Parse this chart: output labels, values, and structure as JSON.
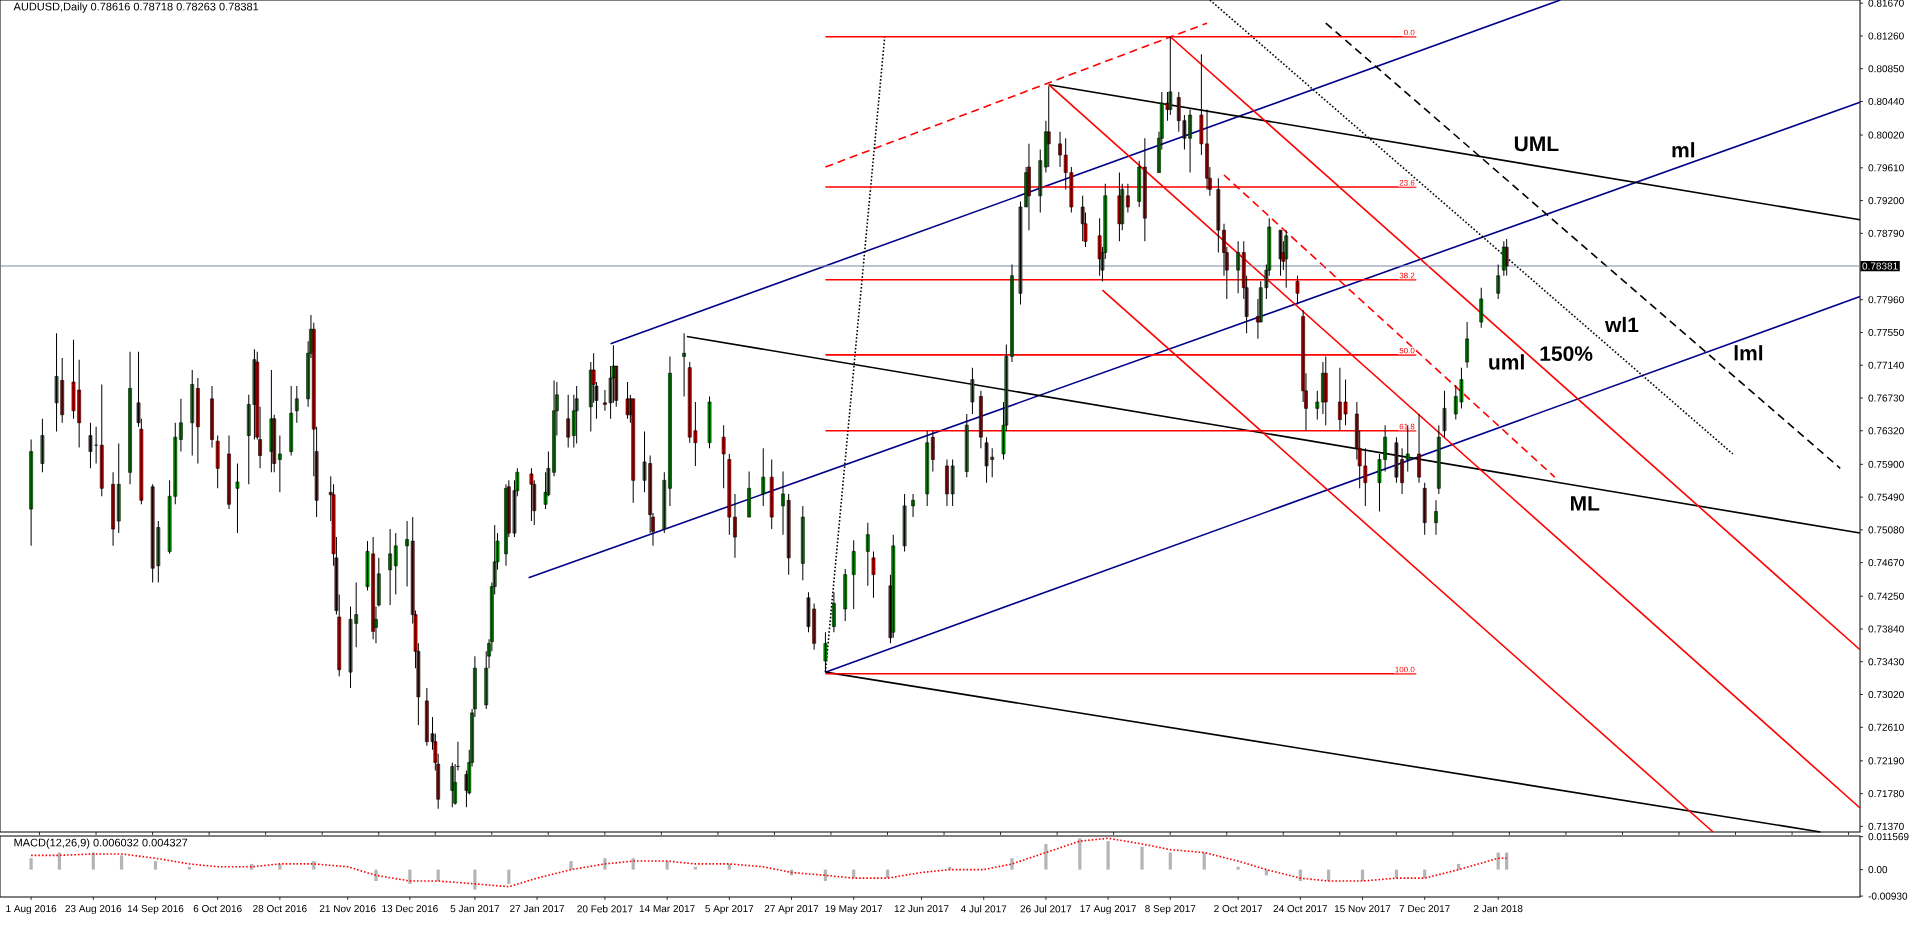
{
  "chart_data": [
    {
      "type": "candlestick",
      "title": "AUDUSD,Daily  0.78616 0.78718 0.78263 0.78381",
      "x": [
        "2016-08-01",
        "2016-08-05",
        "2016-08-10",
        "2016-08-12",
        "2016-08-16",
        "2016-08-18",
        "2016-08-22",
        "2016-08-24",
        "2016-08-26",
        "2016-08-30",
        "2016-09-01",
        "2016-09-05",
        "2016-09-08",
        "2016-09-09",
        "2016-09-13",
        "2016-09-15",
        "2016-09-19",
        "2016-09-21",
        "2016-09-23",
        "2016-09-27",
        "2016-09-29",
        "2016-10-04",
        "2016-10-06",
        "2016-10-10",
        "2016-10-13",
        "2016-10-17",
        "2016-10-19",
        "2016-10-20",
        "2016-10-21",
        "2016-10-25",
        "2016-10-26",
        "2016-10-28",
        "2016-11-01",
        "2016-11-03",
        "2016-11-07",
        "2016-11-08",
        "2016-11-09",
        "2016-11-10",
        "2016-11-15",
        "2016-11-16",
        "2016-11-17",
        "2016-11-18",
        "2016-11-22",
        "2016-11-24",
        "2016-11-28",
        "2016-11-30",
        "2016-12-01",
        "2016-12-02",
        "2016-12-06",
        "2016-12-08",
        "2016-12-12",
        "2016-12-14",
        "2016-12-15",
        "2016-12-16",
        "2016-12-19",
        "2016-12-21",
        "2016-12-22",
        "2016-12-23",
        "2016-12-28",
        "2016-12-29",
        "2016-12-30",
        "2017-01-02",
        "2017-01-03",
        "2017-01-04",
        "2017-01-05",
        "2017-01-09",
        "2017-01-10",
        "2017-01-11",
        "2017-01-12",
        "2017-01-13",
        "2017-01-16",
        "2017-01-17",
        "2017-01-19",
        "2017-01-20",
        "2017-01-25",
        "2017-01-26",
        "2017-01-30",
        "2017-01-31",
        "2017-02-02",
        "2017-02-03",
        "2017-02-07",
        "2017-02-09",
        "2017-02-10",
        "2017-02-15",
        "2017-02-16",
        "2017-02-17",
        "2017-02-20",
        "2017-02-22",
        "2017-02-23",
        "2017-02-24",
        "2017-02-28",
        "2017-03-01",
        "2017-03-02",
        "2017-03-06",
        "2017-03-08",
        "2017-03-09",
        "2017-03-13",
        "2017-03-15",
        "2017-03-20",
        "2017-03-22",
        "2017-03-24",
        "2017-03-29",
        "2017-04-03",
        "2017-04-05",
        "2017-04-07",
        "2017-04-12",
        "2017-04-17",
        "2017-04-20",
        "2017-04-24",
        "2017-04-26",
        "2017-05-01",
        "2017-05-03",
        "2017-05-05",
        "2017-05-09",
        "2017-05-12",
        "2017-05-16",
        "2017-05-19",
        "2017-05-24",
        "2017-05-26",
        "2017-06-01",
        "2017-06-02",
        "2017-06-06",
        "2017-06-09",
        "2017-06-14",
        "2017-06-16",
        "2017-06-21",
        "2017-06-23",
        "2017-06-28",
        "2017-06-30",
        "2017-07-03",
        "2017-07-05",
        "2017-07-07",
        "2017-07-11",
        "2017-07-12",
        "2017-07-14",
        "2017-07-17",
        "2017-07-19",
        "2017-07-20",
        "2017-07-24",
        "2017-07-26",
        "2017-07-27",
        "2017-07-31",
        "2017-08-02",
        "2017-08-04",
        "2017-08-08",
        "2017-08-09",
        "2017-08-14",
        "2017-08-15",
        "2017-08-16",
        "2017-08-21",
        "2017-08-22",
        "2017-08-24",
        "2017-08-28",
        "2017-08-30",
        "2017-09-04",
        "2017-09-05",
        "2017-09-07",
        "2017-09-08",
        "2017-09-11",
        "2017-09-13",
        "2017-09-15",
        "2017-09-19",
        "2017-09-21",
        "2017-09-22",
        "2017-09-25",
        "2017-09-27",
        "2017-09-28",
        "2017-10-02",
        "2017-10-04",
        "2017-10-05",
        "2017-10-09",
        "2017-10-10",
        "2017-10-12",
        "2017-10-13",
        "2017-10-17",
        "2017-10-18",
        "2017-10-19",
        "2017-10-23",
        "2017-10-25",
        "2017-10-26",
        "2017-10-30",
        "2017-11-01",
        "2017-11-02",
        "2017-11-07",
        "2017-11-09",
        "2017-11-13",
        "2017-11-14",
        "2017-11-16",
        "2017-11-21",
        "2017-11-23",
        "2017-11-27",
        "2017-11-29",
        "2017-12-01",
        "2017-12-05",
        "2017-12-07",
        "2017-12-11",
        "2017-12-12",
        "2017-12-14",
        "2017-12-18",
        "2017-12-20",
        "2017-12-22",
        "2017-12-27",
        "2018-01-02",
        "2018-01-04",
        "2018-01-05"
      ],
      "ohlc": [
        [
          0.7534,
          0.7621,
          0.7488,
          0.7606
        ],
        [
          0.7591,
          0.7647,
          0.758,
          0.7626
        ],
        [
          0.7667,
          0.7754,
          0.7631,
          0.77
        ],
        [
          0.7695,
          0.7723,
          0.7642,
          0.7652
        ],
        [
          0.7693,
          0.7746,
          0.7647,
          0.7657
        ],
        [
          0.7683,
          0.7721,
          0.7611,
          0.7642
        ],
        [
          0.7626,
          0.7642,
          0.7585,
          0.7606
        ],
        [
          0.7614,
          0.7637,
          0.7591,
          0.7614
        ],
        [
          0.7614,
          0.769,
          0.755,
          0.756
        ],
        [
          0.7565,
          0.758,
          0.7488,
          0.7509
        ],
        [
          0.7519,
          0.7616,
          0.7504,
          0.7565
        ],
        [
          0.758,
          0.7731,
          0.7565,
          0.7685
        ],
        [
          0.7667,
          0.7731,
          0.7637,
          0.7642
        ],
        [
          0.7634,
          0.7647,
          0.754,
          0.7545
        ],
        [
          0.7562,
          0.7565,
          0.7442,
          0.746
        ],
        [
          0.7463,
          0.7519,
          0.7442,
          0.7511
        ],
        [
          0.7481,
          0.757,
          0.7478,
          0.755
        ],
        [
          0.755,
          0.7642,
          0.754,
          0.7624
        ],
        [
          0.7621,
          0.7672,
          0.7606,
          0.7642
        ],
        [
          0.7642,
          0.7708,
          0.7601,
          0.769
        ],
        [
          0.7685,
          0.7698,
          0.7591,
          0.7637
        ],
        [
          0.7672,
          0.7688,
          0.7611,
          0.7621
        ],
        [
          0.7619,
          0.7626,
          0.756,
          0.7585
        ],
        [
          0.7603,
          0.7626,
          0.7534,
          0.754
        ],
        [
          0.756,
          0.7591,
          0.7504,
          0.7568
        ],
        [
          0.7626,
          0.7677,
          0.7565,
          0.7665
        ],
        [
          0.7665,
          0.7734,
          0.7621,
          0.7721
        ],
        [
          0.7718,
          0.7731,
          0.7621,
          0.7624
        ],
        [
          0.7621,
          0.7662,
          0.7585,
          0.7601
        ],
        [
          0.7606,
          0.7708,
          0.758,
          0.7647
        ],
        [
          0.7647,
          0.7652,
          0.758,
          0.7591
        ],
        [
          0.7596,
          0.7626,
          0.7555,
          0.7603
        ],
        [
          0.7606,
          0.7688,
          0.7601,
          0.7654
        ],
        [
          0.7657,
          0.7688,
          0.7642,
          0.7672
        ],
        [
          0.7672,
          0.7744,
          0.7662,
          0.7729
        ],
        [
          0.7729,
          0.7777,
          0.7723,
          0.7759
        ],
        [
          0.7759,
          0.7767,
          0.7575,
          0.7634
        ],
        [
          0.7606,
          0.7637,
          0.7524,
          0.7545
        ],
        [
          0.7555,
          0.7575,
          0.7519,
          0.7552
        ],
        [
          0.7552,
          0.7565,
          0.7463,
          0.7478
        ],
        [
          0.7473,
          0.7499,
          0.7402,
          0.7407
        ],
        [
          0.7399,
          0.7427,
          0.7325,
          0.7333
        ],
        [
          0.733,
          0.7412,
          0.731,
          0.7396
        ],
        [
          0.7391,
          0.7442,
          0.7361,
          0.7402
        ],
        [
          0.7437,
          0.7494,
          0.7432,
          0.7481
        ],
        [
          0.7478,
          0.7499,
          0.7371,
          0.7381
        ],
        [
          0.7386,
          0.7412,
          0.7366,
          0.7396
        ],
        [
          0.7414,
          0.7473,
          0.7412,
          0.7453
        ],
        [
          0.7458,
          0.7509,
          0.7414,
          0.7478
        ],
        [
          0.7463,
          0.7504,
          0.7427,
          0.7488
        ],
        [
          0.7488,
          0.7519,
          0.7437,
          0.7496
        ],
        [
          0.7494,
          0.7524,
          0.7391,
          0.7402
        ],
        [
          0.7402,
          0.7407,
          0.7335,
          0.7356
        ],
        [
          0.7356,
          0.7366,
          0.7264,
          0.7299
        ],
        [
          0.7294,
          0.731,
          0.7238,
          0.7243
        ],
        [
          0.7253,
          0.7274,
          0.7233,
          0.7243
        ],
        [
          0.7243,
          0.7253,
          0.7207,
          0.7217
        ],
        [
          0.7215,
          0.7228,
          0.7159,
          0.7171
        ],
        [
          0.7182,
          0.7217,
          0.7161,
          0.7212
        ],
        [
          0.7166,
          0.7215,
          0.7164,
          0.7192
        ],
        [
          0.7212,
          0.7243,
          0.7207,
          0.7212
        ],
        [
          0.7202,
          0.7207,
          0.7161,
          0.7182
        ],
        [
          0.7179,
          0.7233,
          0.7177,
          0.7217
        ],
        [
          0.7217,
          0.7284,
          0.7212,
          0.7279
        ],
        [
          0.7284,
          0.735,
          0.7274,
          0.7335
        ],
        [
          0.7289,
          0.7356,
          0.7284,
          0.7335
        ],
        [
          0.735,
          0.7371,
          0.7335,
          0.7366
        ],
        [
          0.7368,
          0.7442,
          0.7356,
          0.7437
        ],
        [
          0.7437,
          0.7514,
          0.7427,
          0.7468
        ],
        [
          0.7468,
          0.7504,
          0.7458,
          0.7494
        ],
        [
          0.7478,
          0.7565,
          0.7463,
          0.756
        ],
        [
          0.7562,
          0.757,
          0.7499,
          0.7504
        ],
        [
          0.7504,
          0.757,
          0.7499,
          0.7557
        ],
        [
          0.7557,
          0.7585,
          0.755,
          0.758
        ],
        [
          0.7578,
          0.7585,
          0.7519,
          0.7565
        ],
        [
          0.7565,
          0.757,
          0.7514,
          0.7532
        ],
        [
          0.754,
          0.758,
          0.7534,
          0.7555
        ],
        [
          0.7552,
          0.7606,
          0.755,
          0.7585
        ],
        [
          0.758,
          0.7695,
          0.7575,
          0.7657
        ],
        [
          0.7657,
          0.7693,
          0.7626,
          0.7677
        ],
        [
          0.7647,
          0.7677,
          0.7611,
          0.7624
        ],
        [
          0.7626,
          0.7677,
          0.7611,
          0.7657
        ],
        [
          0.7657,
          0.7688,
          0.7616,
          0.7672
        ],
        [
          0.7662,
          0.7718,
          0.7631,
          0.7708
        ],
        [
          0.7708,
          0.7729,
          0.7667,
          0.769
        ],
        [
          0.7688,
          0.7693,
          0.7647,
          0.767
        ],
        [
          0.7667,
          0.7683,
          0.7657,
          0.7665
        ],
        [
          0.7667,
          0.7713,
          0.7647,
          0.7698
        ],
        [
          0.7698,
          0.7739,
          0.7667,
          0.7713
        ],
        [
          0.7713,
          0.7713,
          0.7662,
          0.767
        ],
        [
          0.7672,
          0.7693,
          0.7647,
          0.7652
        ],
        [
          0.7652,
          0.7677,
          0.7642,
          0.7672
        ],
        [
          0.7672,
          0.7672,
          0.7542,
          0.757
        ],
        [
          0.757,
          0.7631,
          0.7555,
          0.7593
        ],
        [
          0.7591,
          0.7601,
          0.7504,
          0.7527
        ],
        [
          0.7524,
          0.7529,
          0.7488,
          0.7506
        ],
        [
          0.7509,
          0.758,
          0.7504,
          0.757
        ],
        [
          0.756,
          0.7725,
          0.7538,
          0.7704
        ],
        [
          0.7725,
          0.7754,
          0.7675,
          0.7729
        ],
        [
          0.7711,
          0.7718,
          0.7617,
          0.7624
        ],
        [
          0.7632,
          0.7668,
          0.7588,
          0.7617
        ],
        [
          0.7617,
          0.7675,
          0.761,
          0.7668
        ],
        [
          0.7624,
          0.7639,
          0.756,
          0.7603
        ],
        [
          0.7596,
          0.7603,
          0.7502,
          0.7524
        ],
        [
          0.7524,
          0.7553,
          0.7473,
          0.7499
        ],
        [
          0.7524,
          0.7581,
          0.7524,
          0.756
        ],
        [
          0.7553,
          0.761,
          0.7538,
          0.7574
        ],
        [
          0.7574,
          0.7596,
          0.7509,
          0.7524
        ],
        [
          0.7538,
          0.7581,
          0.7502,
          0.7553
        ],
        [
          0.7545,
          0.7553,
          0.7452,
          0.7473
        ],
        [
          0.7466,
          0.7538,
          0.7445,
          0.7524
        ],
        [
          0.7423,
          0.743,
          0.738,
          0.7387
        ],
        [
          0.7409,
          0.7416,
          0.7358,
          0.7366
        ],
        [
          0.7344,
          0.738,
          0.733,
          0.7366
        ],
        [
          0.7387,
          0.743,
          0.738,
          0.7416
        ],
        [
          0.7409,
          0.7459,
          0.7394,
          0.7452
        ],
        [
          0.7452,
          0.7495,
          0.7409,
          0.7481
        ],
        [
          0.7481,
          0.7517,
          0.7438,
          0.7502
        ],
        [
          0.7473,
          0.7481,
          0.7423,
          0.7452
        ],
        [
          0.7438,
          0.7452,
          0.7366,
          0.7373
        ],
        [
          0.738,
          0.7502,
          0.7373,
          0.7488
        ],
        [
          0.7488,
          0.7553,
          0.7481,
          0.7538
        ],
        [
          0.7538,
          0.7553,
          0.7524,
          0.7545
        ],
        [
          0.7553,
          0.7632,
          0.7538,
          0.7617
        ],
        [
          0.7624,
          0.7632,
          0.7581,
          0.7596
        ],
        [
          0.7588,
          0.7596,
          0.7538,
          0.7553
        ],
        [
          0.7553,
          0.7596,
          0.7538,
          0.7588
        ],
        [
          0.7581,
          0.7653,
          0.7574,
          0.7639
        ],
        [
          0.7668,
          0.7711,
          0.7653,
          0.7696
        ],
        [
          0.7675,
          0.7682,
          0.761,
          0.7624
        ],
        [
          0.7617,
          0.7624,
          0.7567,
          0.7588
        ],
        [
          0.7596,
          0.761,
          0.7574,
          0.7599
        ],
        [
          0.7603,
          0.7668,
          0.7596,
          0.7639
        ],
        [
          0.7639,
          0.774,
          0.7632,
          0.7725
        ],
        [
          0.7725,
          0.784,
          0.7718,
          0.7826
        ],
        [
          0.7804,
          0.7919,
          0.779,
          0.7912
        ],
        [
          0.7912,
          0.7962,
          0.7912,
          0.7955
        ],
        [
          0.7962,
          0.7991,
          0.7883,
          0.7926
        ],
        [
          0.7926,
          0.7984,
          0.7905,
          0.797
        ],
        [
          0.7962,
          0.802,
          0.7955,
          0.8006
        ],
        [
          0.8006,
          0.8063,
          0.7962,
          0.7991
        ],
        [
          0.7991,
          0.8006,
          0.7962,
          0.7977
        ],
        [
          0.7977,
          0.7998,
          0.7934,
          0.7955
        ],
        [
          0.7955,
          0.7962,
          0.7905,
          0.7912
        ],
        [
          0.7912,
          0.7926,
          0.7869,
          0.7891
        ],
        [
          0.7891,
          0.7905,
          0.7862,
          0.7869
        ],
        [
          0.7876,
          0.7898,
          0.7826,
          0.7847
        ],
        [
          0.7833,
          0.7862,
          0.7819,
          0.7855
        ],
        [
          0.7855,
          0.7941,
          0.7847,
          0.7926
        ],
        [
          0.7926,
          0.7955,
          0.7869,
          0.7891
        ],
        [
          0.7891,
          0.7941,
          0.7883,
          0.7934
        ],
        [
          0.7926,
          0.7941,
          0.7905,
          0.7912
        ],
        [
          0.7919,
          0.797,
          0.7912,
          0.7962
        ],
        [
          0.7962,
          0.7998,
          0.7869,
          0.7898
        ],
        [
          0.7955,
          0.8006,
          0.7955,
          0.7998
        ],
        [
          0.7998,
          0.8056,
          0.7984,
          0.8042
        ],
        [
          0.8042,
          0.8056,
          0.802,
          0.8034
        ],
        [
          0.8034,
          0.8125,
          0.8027,
          0.8056
        ],
        [
          0.8049,
          0.8056,
          0.8006,
          0.802
        ],
        [
          0.802,
          0.8027,
          0.7984,
          0.7998
        ],
        [
          0.7998,
          0.8034,
          0.7955,
          0.8027
        ],
        [
          0.8027,
          0.8103,
          0.7977,
          0.7991
        ],
        [
          0.7991,
          0.8034,
          0.7934,
          0.7948
        ],
        [
          0.7948,
          0.7962,
          0.7926,
          0.7934
        ],
        [
          0.7934,
          0.7948,
          0.7855,
          0.7883
        ],
        [
          0.7883,
          0.7891,
          0.7826,
          0.7855
        ],
        [
          0.7855,
          0.7862,
          0.7797,
          0.7833
        ],
        [
          0.7833,
          0.7869,
          0.7804,
          0.7855
        ],
        [
          0.7855,
          0.7869,
          0.7797,
          0.7811
        ],
        [
          0.7811,
          0.7826,
          0.7754,
          0.7775
        ],
        [
          0.7775,
          0.7797,
          0.7747,
          0.7768
        ],
        [
          0.7768,
          0.7819,
          0.7768,
          0.7811
        ],
        [
          0.7811,
          0.784,
          0.7797,
          0.7833
        ],
        [
          0.7833,
          0.7898,
          0.7826,
          0.7887
        ],
        [
          0.7883,
          0.7883,
          0.7826,
          0.7847
        ],
        [
          0.7855,
          0.7869,
          0.7833,
          0.7844
        ],
        [
          0.7847,
          0.7883,
          0.7811,
          0.7876
        ],
        [
          0.7819,
          0.7826,
          0.779,
          0.7804
        ],
        [
          0.7775,
          0.7783,
          0.7668,
          0.7682
        ],
        [
          0.7682,
          0.7704,
          0.7632,
          0.766
        ],
        [
          0.766,
          0.7682,
          0.7646,
          0.7668
        ],
        [
          0.7668,
          0.7718,
          0.7653,
          0.7704
        ],
        [
          0.7704,
          0.7725,
          0.7639,
          0.7668
        ],
        [
          0.7668,
          0.7711,
          0.7632,
          0.7646
        ],
        [
          0.7668,
          0.7696,
          0.7639,
          0.7653
        ],
        [
          0.7653,
          0.7668,
          0.7596,
          0.761
        ],
        [
          0.761,
          0.7632,
          0.756,
          0.7588
        ],
        [
          0.7588,
          0.761,
          0.7538,
          0.7567
        ],
        [
          0.7567,
          0.7603,
          0.7531,
          0.7596
        ],
        [
          0.7596,
          0.7639,
          0.7581,
          0.7624
        ],
        [
          0.7617,
          0.7624,
          0.7567,
          0.7574
        ],
        [
          0.7596,
          0.761,
          0.7553,
          0.7567
        ],
        [
          0.7596,
          0.7639,
          0.7581,
          0.7603
        ],
        [
          0.7603,
          0.7653,
          0.7567,
          0.7574
        ],
        [
          0.756,
          0.7567,
          0.7502,
          0.7517
        ],
        [
          0.7517,
          0.7545,
          0.7502,
          0.7531
        ],
        [
          0.756,
          0.7639,
          0.7553,
          0.7624
        ],
        [
          0.7632,
          0.7682,
          0.7624,
          0.766
        ],
        [
          0.7653,
          0.7689,
          0.7646,
          0.7675
        ],
        [
          0.7668,
          0.7711,
          0.766,
          0.7696
        ],
        [
          0.7718,
          0.7768,
          0.7711,
          0.7747
        ],
        [
          0.7768,
          0.7811,
          0.7761,
          0.7797
        ],
        [
          0.7804,
          0.784,
          0.7797,
          0.7826
        ],
        [
          0.7833,
          0.7869,
          0.7826,
          0.7862
        ],
        [
          0.78616,
          0.78718,
          0.78263,
          0.78381
        ]
      ],
      "xlim": [
        "2016-07-21",
        "2018-05-10"
      ],
      "ylim": [
        0.713,
        0.8171
      ],
      "yticks": [
        {
          "value": 0.7137,
          "label": "0.71370"
        },
        {
          "value": 0.7178,
          "label": "0.71780"
        },
        {
          "value": 0.7219,
          "label": "0.72190"
        },
        {
          "value": 0.7261,
          "label": "0.72610"
        },
        {
          "value": 0.7302,
          "label": "0.73020"
        },
        {
          "value": 0.7343,
          "label": "0.73430"
        },
        {
          "value": 0.7384,
          "label": "0.73840"
        },
        {
          "value": 0.7425,
          "label": "0.74250"
        },
        {
          "value": 0.7467,
          "label": "0.74670"
        },
        {
          "value": 0.7508,
          "label": "0.75080"
        },
        {
          "value": 0.7549,
          "label": "0.75490"
        },
        {
          "value": 0.759,
          "label": "0.75900"
        },
        {
          "value": 0.7632,
          "label": "0.76320"
        },
        {
          "value": 0.7673,
          "label": "0.76730"
        },
        {
          "value": 0.7714,
          "label": "0.77140"
        },
        {
          "value": 0.7755,
          "label": "0.77550"
        },
        {
          "value": 0.7796,
          "label": "0.77960"
        },
        {
          "value": 0.7879,
          "label": "0.78790"
        },
        {
          "value": 0.792,
          "label": "0.79200"
        },
        {
          "value": 0.7961,
          "label": "0.79610"
        },
        {
          "value": 0.8002,
          "label": "0.80020"
        },
        {
          "value": 0.8044,
          "label": "0.80440"
        },
        {
          "value": 0.8085,
          "label": "0.80850"
        },
        {
          "value": 0.8126,
          "label": "0.81260"
        },
        {
          "value": 0.8167,
          "label": "0.81670"
        }
      ],
      "tick_labels": "y",
      "series": [
        {
          "type": "line",
          "x": [
            "2017-02-22",
            "2018-01-24"
          ],
          "values": [
            0.7741,
            0.8171
          ],
          "color": "#00008b",
          "line_style": "solid"
        },
        {
          "type": "line",
          "x": [
            "2017-01-24",
            "2018-05-10"
          ],
          "values": [
            0.7448,
            0.8043
          ],
          "color": "#00008b",
          "line_style": "solid"
        },
        {
          "type": "line",
          "x": [
            "2017-05-09",
            "2018-05-10"
          ],
          "values": [
            0.733,
            0.78
          ],
          "color": "#00008b",
          "line_style": "solid"
        },
        {
          "type": "line",
          "x": [
            "2017-07-27",
            "2018-05-10"
          ],
          "values": [
            0.8065,
            0.7896
          ],
          "color": "#000000",
          "line_style": "solid"
        },
        {
          "type": "line",
          "x": [
            "2017-03-21",
            "2018-05-10"
          ],
          "values": [
            0.775,
            0.7504
          ],
          "color": "#000000",
          "line_style": "solid"
        },
        {
          "type": "line",
          "x": [
            "2017-05-09",
            "2018-04-26"
          ],
          "values": [
            0.733,
            0.713
          ],
          "color": "#000000",
          "line_style": "solid"
        },
        {
          "type": "line",
          "x": [
            "2017-07-27",
            "2018-05-10"
          ],
          "values": [
            0.8065,
            0.716
          ],
          "color": "#ff0000",
          "line_style": "solid"
        },
        {
          "type": "line",
          "x": [
            "2017-09-08",
            "2018-05-10"
          ],
          "values": [
            0.8125,
            0.7358
          ],
          "color": "#ff0000",
          "line_style": "solid"
        },
        {
          "type": "line",
          "x": [
            "2017-08-15",
            "2018-03-19"
          ],
          "values": [
            0.7808,
            0.713
          ],
          "color": "#ff0000",
          "line_style": "solid"
        },
        {
          "type": "line",
          "x": [
            "2017-09-27",
            "2018-01-22"
          ],
          "values": [
            0.7952,
            0.7574
          ],
          "color": "#ff0000",
          "line_style": "dashed"
        },
        {
          "type": "line",
          "x": [
            "2017-05-09",
            "2017-09-21"
          ],
          "values": [
            0.7962,
            0.8142
          ],
          "color": "#ff0000",
          "line_style": "dashed"
        },
        {
          "type": "line",
          "x": [
            "2017-05-09",
            "2017-05-30"
          ],
          "values": [
            0.733,
            0.8126
          ],
          "color": "#000000",
          "line_style": "dotted"
        },
        {
          "type": "line",
          "x": [
            "2017-09-22",
            "2018-03-26"
          ],
          "values": [
            0.8171,
            0.7603
          ],
          "color": "#000000",
          "line_style": "dotted"
        },
        {
          "type": "line",
          "x": [
            "2017-11-02",
            "2018-05-03"
          ],
          "values": [
            0.8142,
            0.7585
          ],
          "color": "#000000",
          "line_style": "dashed"
        },
        {
          "type": "line",
          "name": "0.0",
          "x": [
            "2017-05-09",
            "2017-12-04"
          ],
          "values": [
            0.8125,
            0.8125
          ],
          "color": "#ff0000",
          "line_style": "solid"
        },
        {
          "type": "line",
          "name": "23.6",
          "x": [
            "2017-05-09",
            "2017-12-04"
          ],
          "values": [
            0.7937,
            0.7937
          ],
          "color": "#ff0000",
          "line_style": "solid"
        },
        {
          "type": "line",
          "name": "38.2",
          "x": [
            "2017-05-09",
            "2017-12-04"
          ],
          "values": [
            0.7821,
            0.7821
          ],
          "color": "#ff0000",
          "line_style": "solid"
        },
        {
          "type": "line",
          "name": "50.0",
          "x": [
            "2017-05-09",
            "2017-12-04"
          ],
          "values": [
            0.7727,
            0.7727
          ],
          "color": "#ff0000",
          "line_style": "solid"
        },
        {
          "type": "line",
          "name": "61.8",
          "x": [
            "2017-05-09",
            "2017-12-04"
          ],
          "values": [
            0.7632,
            0.7632
          ],
          "color": "#ff0000",
          "line_style": "solid"
        },
        {
          "type": "line",
          "name": "100.0",
          "x": [
            "2017-05-09",
            "2017-12-04"
          ],
          "values": [
            0.7328,
            0.7328
          ],
          "color": "#ff0000",
          "line_style": "solid"
        }
      ],
      "ref_lines": [
        {
          "axis": "y",
          "value": 0.78381,
          "label": "0.78381",
          "color": "#7a8aa8"
        }
      ],
      "annotations": [
        "UML",
        "ml",
        "wl1",
        "150%",
        "uml",
        "lml",
        "ML"
      ]
    },
    {
      "type": "bar",
      "title": "MACD(12,26,9) 0.006032 0.004327",
      "x": [
        "2016-08-01",
        "2016-08-11",
        "2016-08-23",
        "2016-09-02",
        "2016-09-14",
        "2016-09-26",
        "2016-10-06",
        "2016-10-18",
        "2016-10-28",
        "2016-11-09",
        "2016-11-21",
        "2016-12-01",
        "2016-12-13",
        "2016-12-23",
        "2017-01-05",
        "2017-01-17",
        "2017-01-27",
        "2017-02-08",
        "2017-02-20",
        "2017-03-02",
        "2017-03-14",
        "2017-03-24",
        "2017-04-05",
        "2017-04-17",
        "2017-04-27",
        "2017-05-09",
        "2017-05-19",
        "2017-05-31",
        "2017-06-12",
        "2017-06-22",
        "2017-07-04",
        "2017-07-14",
        "2017-07-26",
        "2017-08-07",
        "2017-08-17",
        "2017-08-29",
        "2017-09-08",
        "2017-09-20",
        "2017-10-02",
        "2017-10-12",
        "2017-10-24",
        "2017-11-03",
        "2017-11-15",
        "2017-11-27",
        "2017-12-07",
        "2017-12-19",
        "2018-01-02",
        "2018-01-05"
      ],
      "series": [
        {
          "type": "bar",
          "color": "#b4b4b4",
          "values": [
            0.004,
            0.006,
            0.006,
            0.005,
            0.003,
            0.001,
            0.0,
            0.002,
            0.002,
            0.003,
            0.0,
            -0.004,
            -0.005,
            -0.004,
            -0.007,
            -0.005,
            0.0,
            0.003,
            0.004,
            0.004,
            0.003,
            0.001,
            0.002,
            0.0,
            -0.002,
            -0.004,
            -0.003,
            -0.003,
            0.0,
            0.001,
            0.0,
            0.004,
            0.009,
            0.011,
            0.01,
            0.008,
            0.006,
            0.006,
            0.001,
            -0.002,
            -0.004,
            -0.004,
            -0.004,
            -0.003,
            -0.003,
            0.002,
            0.006,
            0.006
          ]
        },
        {
          "type": "line",
          "color": "#ff0000",
          "line_style": "dotted",
          "values": [
            0.005,
            0.005,
            0.0055,
            0.0055,
            0.004,
            0.002,
            0.001,
            0.001,
            0.002,
            0.002,
            0.001,
            -0.002,
            -0.004,
            -0.004,
            -0.005,
            -0.006,
            -0.003,
            0.0,
            0.002,
            0.003,
            0.003,
            0.002,
            0.002,
            0.001,
            -0.001,
            -0.002,
            -0.003,
            -0.003,
            -0.001,
            0.0,
            0.0,
            0.002,
            0.006,
            0.01,
            0.011,
            0.009,
            0.007,
            0.006,
            0.003,
            0.0,
            -0.003,
            -0.004,
            -0.004,
            -0.003,
            -0.003,
            0.0,
            0.004,
            0.004
          ]
        }
      ],
      "xlim": [
        "2016-07-21",
        "2018-05-10"
      ],
      "xticks": [
        {
          "value": "2016-08-01",
          "label": "1 Aug 2016"
        },
        {
          "value": "2016-08-23",
          "label": "23 Aug 2016"
        },
        {
          "value": "2016-09-14",
          "label": "14 Sep 2016"
        },
        {
          "value": "2016-10-06",
          "label": "6 Oct 2016"
        },
        {
          "value": "2016-10-28",
          "label": "28 Oct 2016"
        },
        {
          "value": "2016-11-21",
          "label": "21 Nov 2016"
        },
        {
          "value": "2016-12-13",
          "label": "13 Dec 2016"
        },
        {
          "value": "2017-01-05",
          "label": "5 Jan 2017"
        },
        {
          "value": "2017-01-27",
          "label": "27 Jan 2017"
        },
        {
          "value": "2017-02-20",
          "label": "20 Feb 2017"
        },
        {
          "value": "2017-03-14",
          "label": "14 Mar 2017"
        },
        {
          "value": "2017-04-05",
          "label": "5 Apr 2017"
        },
        {
          "value": "2017-04-27",
          "label": "27 Apr 2017"
        },
        {
          "value": "2017-05-19",
          "label": "19 May 2017"
        },
        {
          "value": "2017-06-12",
          "label": "12 Jun 2017"
        },
        {
          "value": "2017-07-04",
          "label": "4 Jul 2017"
        },
        {
          "value": "2017-07-26",
          "label": "26 Jul 2017"
        },
        {
          "value": "2017-08-17",
          "label": "17 Aug 2017"
        },
        {
          "value": "2017-09-08",
          "label": "8 Sep 2017"
        },
        {
          "value": "2017-10-02",
          "label": "2 Oct 2017"
        },
        {
          "value": "2017-10-24",
          "label": "24 Oct 2017"
        },
        {
          "value": "2017-11-15",
          "label": "15 Nov 2017"
        },
        {
          "value": "2017-12-07",
          "label": "7 Dec 2017"
        },
        {
          "value": "2018-01-02",
          "label": "2 Jan 2018"
        }
      ],
      "ylim": [
        -0.0096,
        0.0118
      ],
      "yticks": [
        {
          "value": 0.011569,
          "label": "0.011569"
        },
        {
          "value": 0,
          "label": "0.00"
        },
        {
          "value": -0.0093,
          "label": "-0.00930"
        }
      ]
    }
  ]
}
